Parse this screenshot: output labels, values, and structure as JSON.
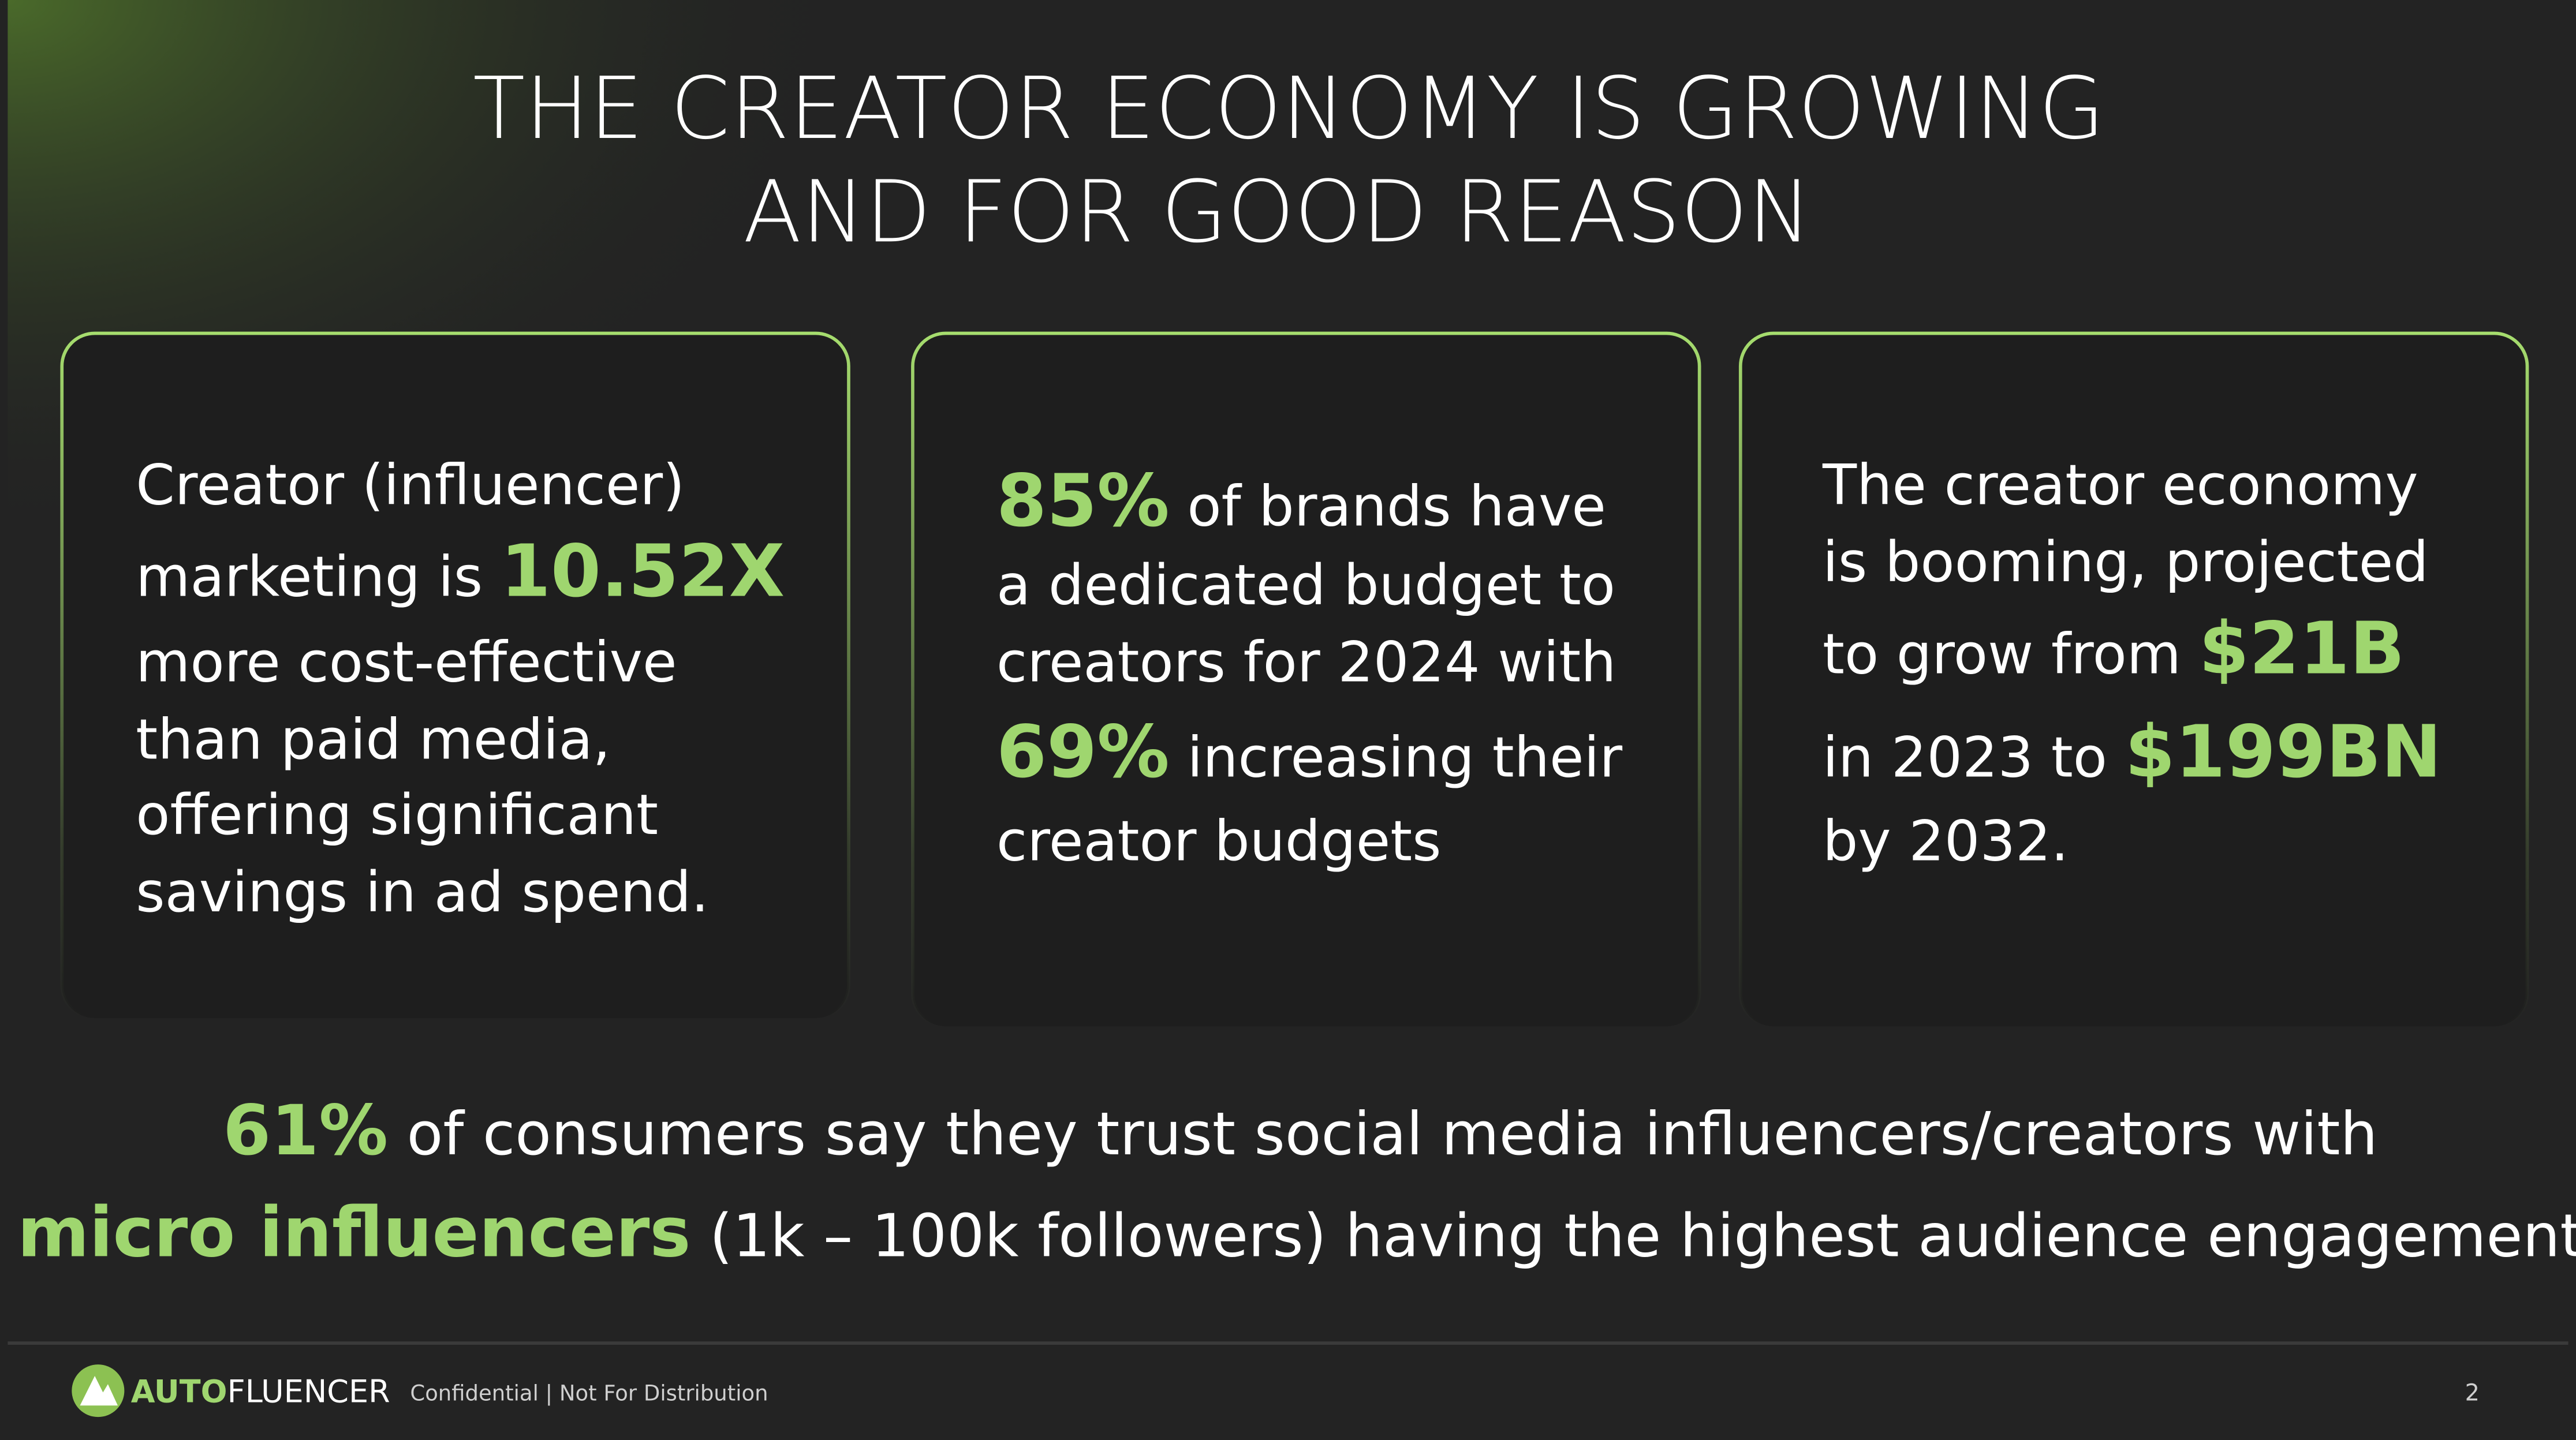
{
  "title": [
    "THE CREATOR ECONOMY IS GROWING",
    "AND FOR GOOD REASON"
  ],
  "cards": [
    {
      "lines": [
        [
          {
            "text": "Creator (influencer)",
            "highlight": false
          }
        ],
        [
          {
            "text": "marketing is ",
            "highlight": false
          },
          {
            "text": "10.52X",
            "highlight": true
          }
        ],
        [
          {
            "text": "more cost-effective",
            "highlight": false
          }
        ],
        [
          {
            "text": "than paid media,",
            "highlight": false
          }
        ],
        [
          {
            "text": "offering significant",
            "highlight": false
          }
        ],
        [
          {
            "text": "savings in ad spend.",
            "highlight": false
          }
        ]
      ]
    },
    {
      "lines": [
        [
          {
            "text": "85%",
            "highlight": true
          },
          {
            "text": " of brands have",
            "highlight": false
          }
        ],
        [
          {
            "text": "a dedicated budget to",
            "highlight": false
          }
        ],
        [
          {
            "text": "creators for 2024 with",
            "highlight": false
          }
        ],
        [
          {
            "text": "69%",
            "highlight": true
          },
          {
            "text": " increasing their",
            "highlight": false
          }
        ],
        [
          {
            "text": "creator budgets",
            "highlight": false
          }
        ]
      ]
    },
    {
      "lines": [
        [
          {
            "text": "The creator economy",
            "highlight": false
          }
        ],
        [
          {
            "text": "is booming, projected",
            "highlight": false
          }
        ],
        [
          {
            "text": "to grow from ",
            "highlight": false
          },
          {
            "text": "$21B",
            "highlight": true
          }
        ],
        [
          {
            "text": "in 2023 to ",
            "highlight": false
          },
          {
            "text": "$199BN",
            "highlight": true
          }
        ],
        [
          {
            "text": "by 2032.",
            "highlight": false
          }
        ]
      ]
    }
  ],
  "statement": [
    [
      {
        "text": "61%",
        "highlight": true
      },
      {
        "text": " of consumers say they trust social media influencers/creators with",
        "highlight": false
      }
    ],
    [
      {
        "text": "micro influencers",
        "highlight": true
      },
      {
        "text": " (1k – 100k followers) having the highest audience engagement",
        "highlight": false
      }
    ]
  ],
  "footer": {
    "brand": [
      {
        "text": "AUTO",
        "highlight": true
      },
      {
        "text": "FLUENCER",
        "highlight": false
      }
    ],
    "note": "Confidential | Not For Distribution",
    "page": "2"
  }
}
